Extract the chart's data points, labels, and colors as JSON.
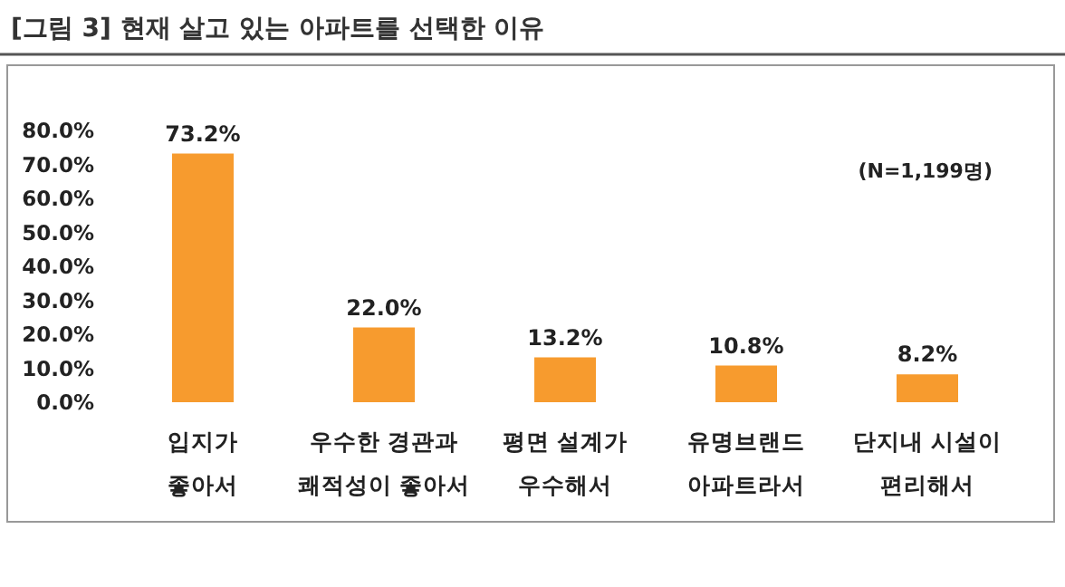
{
  "chart_data": {
    "type": "bar",
    "title": "[그림 3] 현재 살고 있는 아파트를 선택한 이유",
    "categories": [
      "입지가\n좋아서",
      "우수한 경관과\n쾌적성이 좋아서",
      "평면 설계가\n우수해서",
      "유명브랜드\n아파트라서",
      "단지내 시설이\n편리해서"
    ],
    "values": [
      73.2,
      22.0,
      13.2,
      10.8,
      8.2
    ],
    "value_labels": [
      "73.2%",
      "22.0%",
      "13.2%",
      "10.8%",
      "8.2%"
    ],
    "color": "#f79b2e",
    "ylim": [
      0,
      80
    ],
    "yticks": [
      {
        "value": 0,
        "label": "0.0%"
      },
      {
        "value": 10,
        "label": "10.0%"
      },
      {
        "value": 20,
        "label": "20.0%"
      },
      {
        "value": 30,
        "label": "30.0%"
      },
      {
        "value": 40,
        "label": "40.0%"
      },
      {
        "value": 50,
        "label": "50.0%"
      },
      {
        "value": 60,
        "label": "60.0%"
      },
      {
        "value": 70,
        "label": "70.0%"
      },
      {
        "value": 80,
        "label": "80.0%"
      }
    ],
    "annotations": [
      "(N=1,199명)"
    ],
    "grid": false
  }
}
